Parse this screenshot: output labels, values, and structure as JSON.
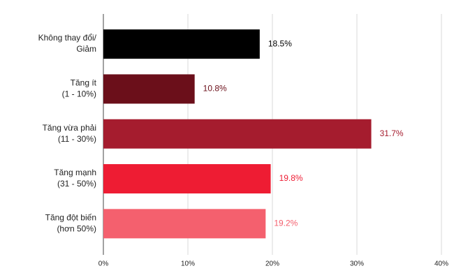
{
  "chart_data": {
    "type": "hbar",
    "categories": [
      [
        "Không thay đổi/",
        "Giảm"
      ],
      [
        "Tăng ít",
        "(1 - 10%)"
      ],
      [
        "Tăng vừa phải",
        "(11 - 30%)"
      ],
      [
        "Tăng mạnh",
        "(31 - 50%)"
      ],
      [
        "Tăng đột biến",
        "(hơn 50%)"
      ]
    ],
    "values": [
      18.5,
      10.8,
      31.7,
      19.8,
      19.2
    ],
    "value_labels": [
      "18.5%",
      "10.8%",
      "31.7%",
      "19.8%",
      "19.2%"
    ],
    "colors": [
      "#000000",
      "#6b0f1a",
      "#a51c2e",
      "#ee1c33",
      "#f4606e"
    ],
    "xlim": [
      0,
      40
    ],
    "xticks": [
      {
        "value": 0,
        "label": "0%"
      },
      {
        "value": 10,
        "label": "10%"
      },
      {
        "value": 20,
        "label": "20%"
      },
      {
        "value": 30,
        "label": "30%"
      },
      {
        "value": 40,
        "label": "40%"
      }
    ],
    "grid": true
  }
}
